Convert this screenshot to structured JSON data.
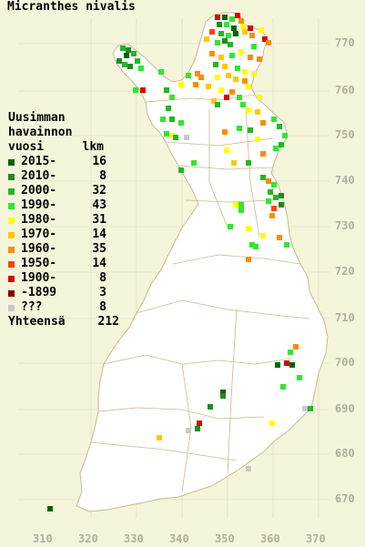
{
  "title": "Micranthes nivalis",
  "legend": {
    "header_line1": "Uusimman",
    "header_line2": "havainnon",
    "col_year": "vuosi",
    "col_count": "lkm",
    "items": [
      {
        "label": "2015-",
        "count": "16",
        "color": "#006400"
      },
      {
        "label": "2010-",
        "count": "8",
        "color": "#1e8c1e"
      },
      {
        "label": "2000-",
        "count": "32",
        "color": "#22b822"
      },
      {
        "label": "1990-",
        "count": "43",
        "color": "#2ee82e"
      },
      {
        "label": "1980-",
        "count": "31",
        "color": "#ffff00"
      },
      {
        "label": "1970-",
        "count": "14",
        "color": "#ffc800"
      },
      {
        "label": "1960-",
        "count": "35",
        "color": "#ff8c00"
      },
      {
        "label": "1950-",
        "count": "14",
        "color": "#ff4500"
      },
      {
        "label": "1900-",
        "count": "8",
        "color": "#dc0000"
      },
      {
        "label": "-1899",
        "count": "3",
        "color": "#8b0000"
      },
      {
        "label": "???",
        "count": "8",
        "color": "#c8c8c8"
      }
    ],
    "total_label": "Yhteensä",
    "total_count": "212"
  },
  "y_ticks": [
    "770",
    "760",
    "750",
    "740",
    "730",
    "720",
    "710",
    "700",
    "690",
    "680",
    "670"
  ],
  "x_ticks": [
    "310",
    "320",
    "330",
    "340",
    "350",
    "360",
    "370"
  ],
  "colors": {
    "background": "#f5f5dc",
    "land": "#ffffff",
    "border": "#c8b98c",
    "grid": "#d8d8c8",
    "tick_text": "#b0b0a0"
  }
}
